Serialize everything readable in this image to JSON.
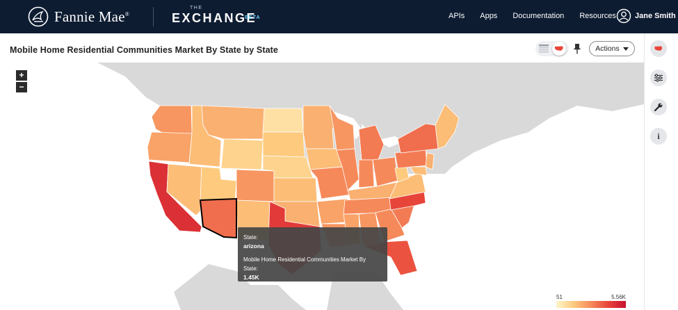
{
  "nav": {
    "brand": "Fannie Mae",
    "brand_mark": "®",
    "product_the": "THE",
    "product": "EXCHANGE",
    "product_beta": "BETA",
    "links": [
      "APIs",
      "Apps",
      "Documentation",
      "Resources"
    ],
    "user_name": "Jane Smith",
    "colors": {
      "background": "#0e1c32",
      "beta_accent": "#6fd0ff"
    }
  },
  "header": {
    "title": "Mobile Home Residential Communities Market By State by State",
    "actions_label": "Actions"
  },
  "icons": {
    "logo": "fannie-mae-logo-icon",
    "user": "user-circle-icon",
    "table_view": "table-icon",
    "map_view": "us-map-icon",
    "pin": "pin-icon",
    "filters": "sliders-icon",
    "settings": "wrench-icon",
    "info": "info-icon"
  },
  "map": {
    "zoom_in": "+",
    "zoom_out": "−",
    "highlighted_state": "arizona",
    "state_fill_levels": {
      "washington": 0.45,
      "oregon": 0.4,
      "california": 0.85,
      "nevada": 0.3,
      "idaho": 0.3,
      "montana": 0.35,
      "wyoming": 0.2,
      "utah": 0.25,
      "arizona": 0.6,
      "colorado": 0.45,
      "new_mexico": 0.3,
      "north_dakota": 0.12,
      "south_dakota": 0.25,
      "nebraska": 0.2,
      "kansas": 0.3,
      "oklahoma": 0.35,
      "texas": 0.8,
      "minnesota": 0.35,
      "iowa": 0.3,
      "missouri": 0.5,
      "arkansas": 0.4,
      "louisiana": 0.45,
      "wisconsin": 0.45,
      "illinois": 0.5,
      "michigan": 0.55,
      "indiana": 0.5,
      "ohio": 0.5,
      "kentucky": 0.35,
      "tennessee": 0.5,
      "mississippi": 0.4,
      "alabama": 0.45,
      "georgia": 0.5,
      "florida": 0.7,
      "south_carolina": 0.55,
      "north_carolina": 0.75,
      "virginia": 0.3,
      "west_virginia": 0.25,
      "pennsylvania": 0.55,
      "new_york": 0.6,
      "new_england": 0.3,
      "new_jersey": 0.35,
      "maryland": 0.3
    },
    "colors": {
      "land": "#d9d9d9",
      "water": "#ffffff",
      "scale_low": "#fff5c8",
      "scale_high": "#c8102e",
      "highlight_stroke": "#000000"
    }
  },
  "tooltip": {
    "state_label": "State:",
    "state_value": "arizona",
    "metric_label": "Mobile Home Residential Communities Market By State:",
    "metric_value": "1.45K"
  },
  "legend": {
    "min_label": "51",
    "max_label": "5.56K"
  }
}
